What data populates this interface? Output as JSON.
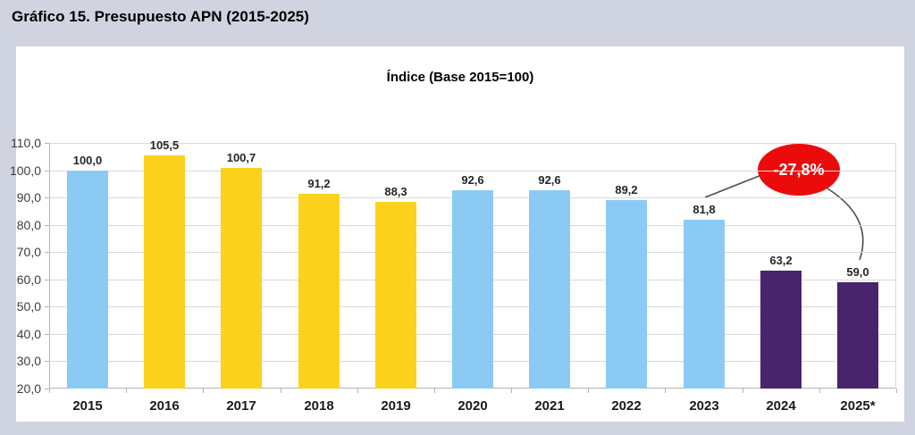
{
  "header": {
    "title": "Gráfico 15. Presupuesto APN (2015-2025)"
  },
  "chart_data": {
    "type": "bar",
    "title": "Índice (Base 2015=100)",
    "categories": [
      "2015",
      "2016",
      "2017",
      "2018",
      "2019",
      "2020",
      "2021",
      "2022",
      "2023",
      "2024",
      "2025*"
    ],
    "values": [
      100.0,
      105.5,
      100.7,
      91.2,
      88.3,
      92.6,
      92.6,
      89.2,
      81.8,
      63.2,
      59.0
    ],
    "value_labels": [
      "100,0",
      "105,5",
      "100,7",
      "91,2",
      "88,3",
      "92,6",
      "92,6",
      "89,2",
      "81,8",
      "63,2",
      "59,0"
    ],
    "bar_color_keys": [
      "blue",
      "yellow",
      "yellow",
      "yellow",
      "yellow",
      "blue",
      "blue",
      "blue",
      "blue",
      "purple",
      "purple"
    ],
    "palette": {
      "blue": "#8bcbf3",
      "yellow": "#fcd21c",
      "purple": "#48246c"
    },
    "xlabel": "",
    "ylabel": "",
    "ylim": [
      20,
      110
    ],
    "ytick_step": 10,
    "ytick_labels": [
      "110,0",
      "100,0",
      "90,0",
      "80,0",
      "70,0",
      "60,0",
      "50,0",
      "40,0",
      "30,0",
      "20,0"
    ],
    "grid": "horizontal",
    "legend": "none",
    "annotation": {
      "label": "-27,8%",
      "fill": "#eb0b0b",
      "text_color": "#ffffff",
      "from_category": "2023",
      "to_category": "2025*"
    }
  }
}
